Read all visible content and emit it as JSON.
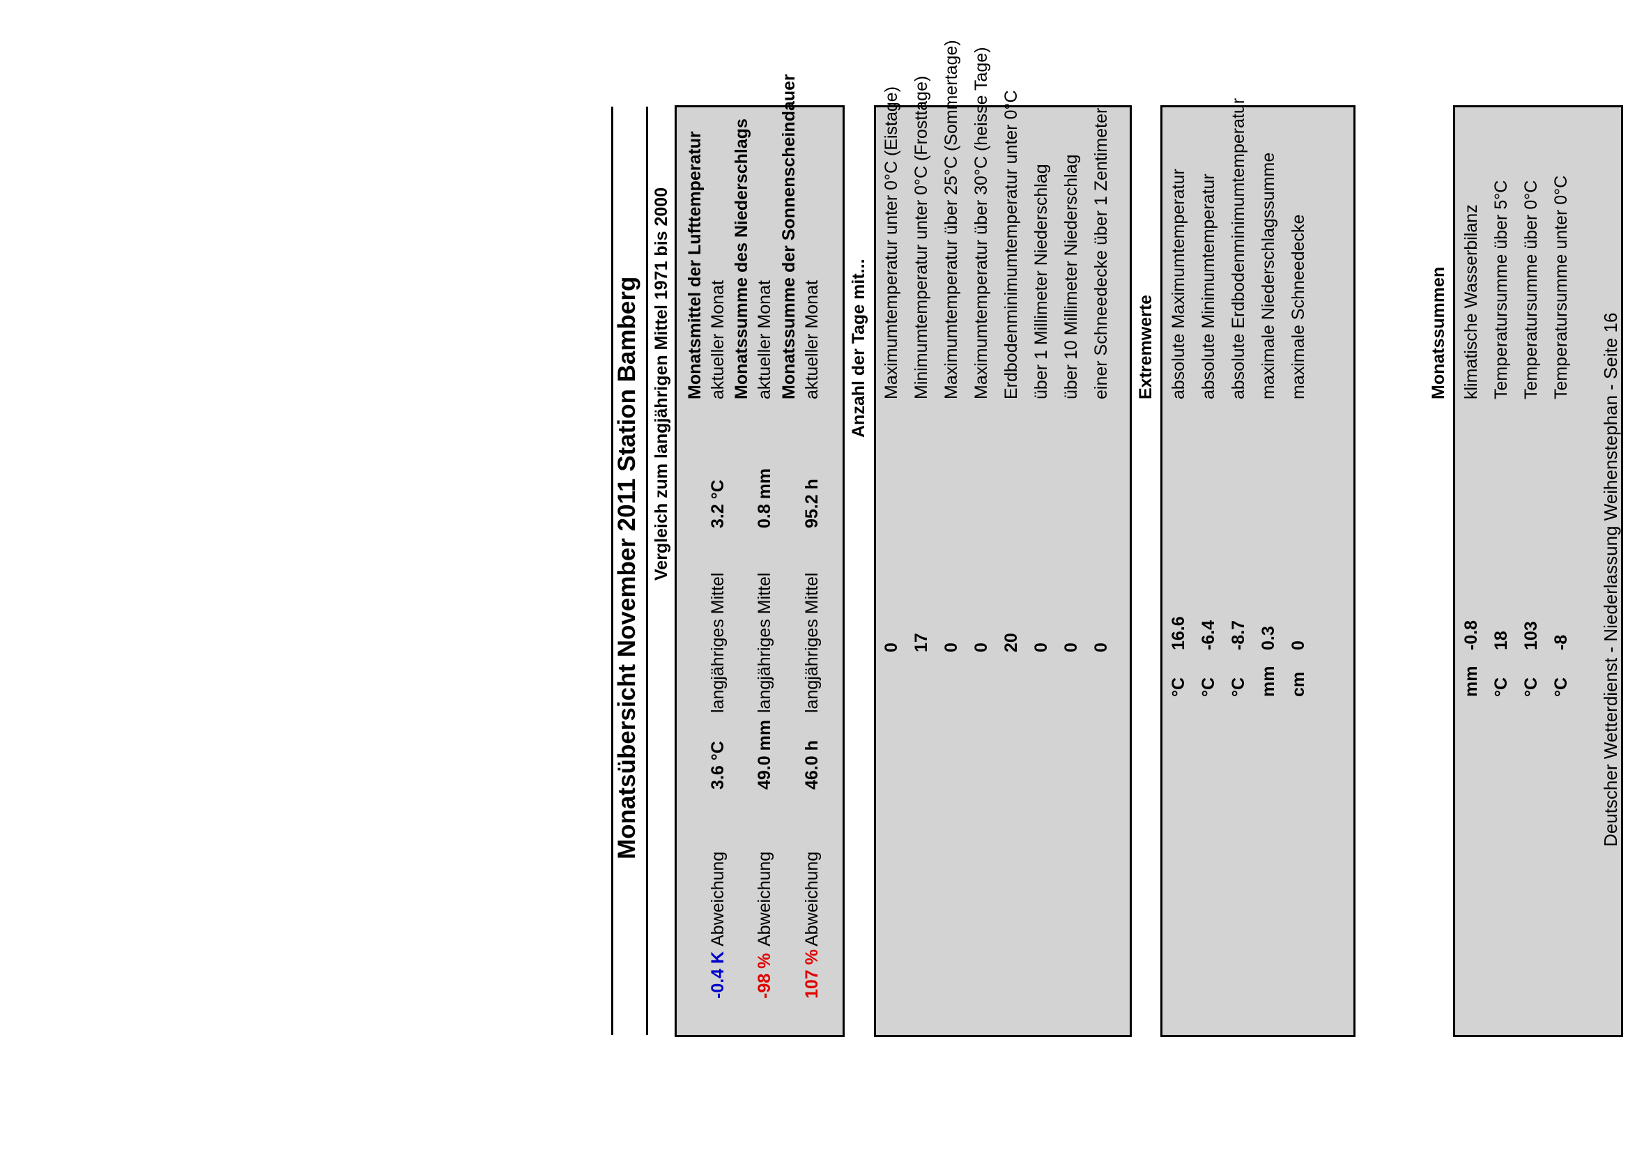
{
  "title": "Monatsübersicht November 2011 Station Bamberg",
  "comparison": {
    "heading": "Vergleich zum langjährigen Mittel 1971 bis 2000",
    "labels": {
      "current": "aktueller Monat",
      "longterm": "langjähriges Mittel",
      "deviation": "Abweichung"
    },
    "sections": [
      {
        "title": "Monatsmittel der Lufttemperatur",
        "current": "3.2 °C",
        "longterm": "3.6 °C",
        "deviation": "-0.4 K",
        "deviation_color": "#0000cc"
      },
      {
        "title": "Monatssumme des Niederschlags",
        "current": "0.8 mm",
        "longterm": "49.0 mm",
        "deviation": "-98 %",
        "deviation_color": "#e00000"
      },
      {
        "title": "Monatssumme der Sonnenscheindauer",
        "current": "95.2 h",
        "longterm": "46.0 h",
        "deviation": "107 %",
        "deviation_color": "#e00000"
      }
    ]
  },
  "days": {
    "heading": "Anzahl der Tage mit...",
    "rows": [
      {
        "label": "Maximumtemperatur unter 0°C (Eistage)",
        "value": "0"
      },
      {
        "label": "Minimumtemperatur unter 0°C (Frosttage)",
        "value": "17"
      },
      {
        "label": "Maximumtemperatur über 25°C (Sommertage)",
        "value": "0"
      },
      {
        "label": "Maximumtemperatur über 30°C (heisse Tage)",
        "value": "0"
      },
      {
        "label": "Erdbodenminimumtemperatur unter 0°C",
        "value": "20"
      },
      {
        "label": "über 1 Millimeter Niederschlag",
        "value": "0"
      },
      {
        "label": "über 10 Millimeter Niederschlag",
        "value": "0"
      },
      {
        "label": "einer Schneedecke über 1 Zentimeter",
        "value": "0"
      }
    ]
  },
  "extremes": {
    "heading": "Extremwerte",
    "rows": [
      {
        "label": "absolute Maximumtemperatur",
        "value": "16.6",
        "unit": "°C"
      },
      {
        "label": "absolute Minimumtemperatur",
        "value": "-6.4",
        "unit": "°C"
      },
      {
        "label": "absolute Erdbodenminimumtemperatur",
        "value": "-8.7",
        "unit": "°C"
      },
      {
        "label": "maximale Niederschlagssumme",
        "value": "0.3",
        "unit": "mm"
      },
      {
        "label": "maximale Schneedecke",
        "value": "0",
        "unit": "cm"
      }
    ]
  },
  "sums": {
    "heading": "Monatssummen",
    "rows": [
      {
        "label": "klimatische Wasserbilanz",
        "value": "-0.8",
        "unit": "mm"
      },
      {
        "label": "Temperatursumme über 5°C",
        "value": "18",
        "unit": "°C"
      },
      {
        "label": "Temperatursumme über 0°C",
        "value": "103",
        "unit": "°C"
      },
      {
        "label": "Temperatursumme unter 0°C",
        "value": "-8",
        "unit": "°C"
      }
    ]
  },
  "footer": "Deutscher Wetterdienst - Niederlassung Weihenstephan - Seite 16"
}
